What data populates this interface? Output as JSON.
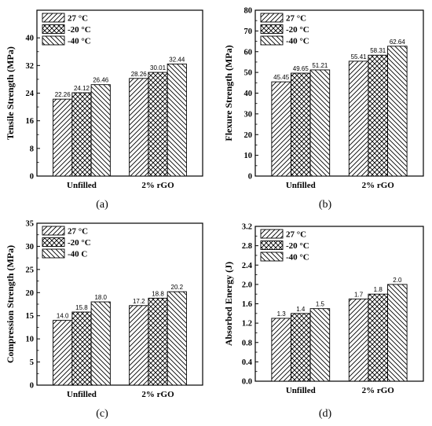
{
  "chart_data": [
    {
      "type": "bar",
      "panel_label": "(a)",
      "ylabel": "Tensile Strength (MPa)",
      "xlabel": "",
      "categories": [
        "Unfilled",
        "2% rGO"
      ],
      "ylim": [
        0,
        48
      ],
      "yticks": [
        0,
        8,
        16,
        24,
        32,
        40
      ],
      "ytick_labels": [
        "0",
        "8",
        "16",
        "24",
        "32",
        "40"
      ],
      "series": [
        {
          "name": "27 °C",
          "values": [
            22.26,
            28.26
          ],
          "labels": [
            "22.26",
            "28.26"
          ]
        },
        {
          "name": "-20 °C",
          "values": [
            24.12,
            30.01
          ],
          "labels": [
            "24.12",
            "30.01"
          ]
        },
        {
          "name": "-40 °C",
          "values": [
            26.46,
            32.44
          ],
          "labels": [
            "26.46",
            "32.44"
          ]
        }
      ],
      "legend": "top-left"
    },
    {
      "type": "bar",
      "panel_label": "(b)",
      "ylabel": "Flexure Strength (MPa)",
      "xlabel": "",
      "categories": [
        "Unfilled",
        "2% rGO"
      ],
      "ylim": [
        0,
        80
      ],
      "yticks": [
        0,
        10,
        20,
        30,
        40,
        50,
        60,
        70,
        80
      ],
      "ytick_labels": [
        "0",
        "10",
        "20",
        "30",
        "40",
        "50",
        "60",
        "70",
        "80"
      ],
      "series": [
        {
          "name": "27 °C",
          "values": [
            45.45,
            55.41
          ],
          "labels": [
            "45.45",
            "55.41"
          ]
        },
        {
          "name": "-20 °C",
          "values": [
            49.65,
            58.31
          ],
          "labels": [
            "49.65",
            "58.31"
          ]
        },
        {
          "name": "-40 °C",
          "values": [
            51.21,
            62.64
          ],
          "labels": [
            "51.21",
            "62.64"
          ]
        }
      ],
      "legend": "top-left"
    },
    {
      "type": "bar",
      "panel_label": "(c)",
      "ylabel": "Compression Strength (MPa)",
      "xlabel": "",
      "categories": [
        "Unfilled",
        "2% rGO"
      ],
      "ylim": [
        0,
        35
      ],
      "yticks": [
        0,
        5,
        10,
        15,
        20,
        25,
        30,
        35
      ],
      "ytick_labels": [
        "0",
        "5",
        "10",
        "15",
        "20",
        "25",
        "30",
        "35"
      ],
      "series": [
        {
          "name": "27 °C",
          "values": [
            14.0,
            17.2
          ],
          "labels": [
            "14.0",
            "17.2"
          ]
        },
        {
          "name": "-20 °C",
          "values": [
            15.8,
            18.8
          ],
          "labels": [
            "15.8",
            "18.8"
          ]
        },
        {
          "name": "-40  C",
          "values": [
            18.0,
            20.2
          ],
          "labels": [
            "18.0",
            "20.2"
          ]
        }
      ],
      "legend": "top-left"
    },
    {
      "type": "bar",
      "panel_label": "(d)",
      "ylabel": "Absorbed Energy (J)",
      "xlabel": "",
      "categories": [
        "Unfilled",
        "2% rGO"
      ],
      "ylim": [
        0,
        3.2
      ],
      "yticks": [
        0,
        0.4,
        0.8,
        1.2,
        1.6,
        2.0,
        2.4,
        2.8,
        3.2
      ],
      "ytick_labels": [
        "0.0",
        "0.4",
        "0.8",
        "1.2",
        "1.6",
        "2.0",
        "2.4",
        "2.8",
        "3.2"
      ],
      "series": [
        {
          "name": "27 °C",
          "values": [
            1.3,
            1.7
          ],
          "labels": [
            "1.3",
            "1.7"
          ]
        },
        {
          "name": "-20 °C",
          "values": [
            1.4,
            1.8
          ],
          "labels": [
            "1.4",
            "1.8"
          ]
        },
        {
          "name": "-40 °C",
          "values": [
            1.5,
            2.0
          ],
          "labels": [
            "1.5",
            "2.0"
          ]
        }
      ],
      "legend": "top-left"
    }
  ]
}
